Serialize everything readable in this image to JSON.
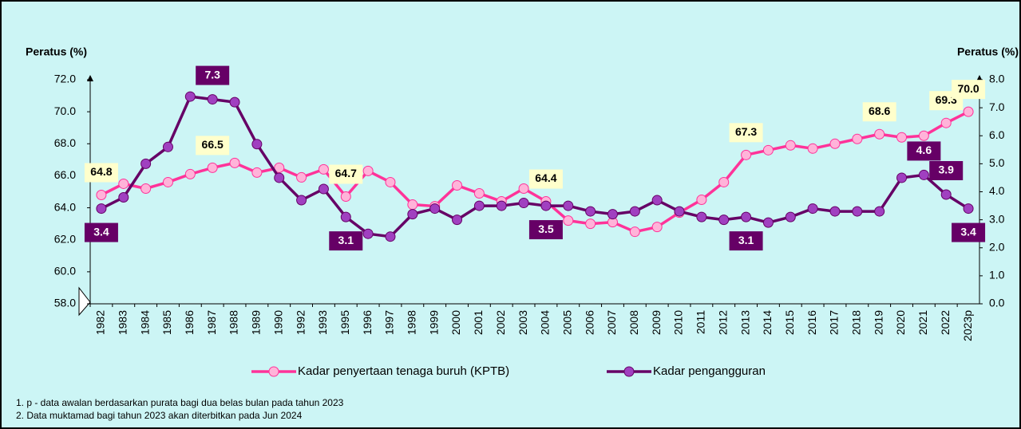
{
  "chart_data": {
    "type": "line",
    "y_label": "Peratus (%)",
    "y2_label": "Peratus (%)",
    "categories": [
      "1982",
      "1983",
      "1984",
      "1985",
      "1986",
      "1987",
      "1988",
      "1989",
      "1990",
      "1992",
      "1993",
      "1995",
      "1996",
      "1997",
      "1998",
      "1999",
      "2000",
      "2001",
      "2002",
      "2003",
      "2004",
      "2005",
      "2006",
      "2007",
      "2008",
      "2009",
      "2010",
      "2011",
      "2012",
      "2013",
      "2014",
      "2015",
      "2016",
      "2017",
      "2018",
      "2019",
      "2020",
      "2021",
      "2022",
      "2023p"
    ],
    "ylim": [
      58,
      72
    ],
    "yticks": [
      {
        "value": 58,
        "label": "58.0"
      },
      {
        "value": 60,
        "label": "60.0"
      },
      {
        "value": 62,
        "label": "62.0"
      },
      {
        "value": 64,
        "label": "64.0"
      },
      {
        "value": 66,
        "label": "66.0"
      },
      {
        "value": 68,
        "label": "68.0"
      },
      {
        "value": 70,
        "label": "70.0"
      },
      {
        "value": 72,
        "label": "72.0"
      }
    ],
    "y2lim": [
      0,
      8
    ],
    "y2ticks": [
      {
        "value": 0,
        "label": "0.0"
      },
      {
        "value": 1,
        "label": "1.0"
      },
      {
        "value": 2,
        "label": "2.0"
      },
      {
        "value": 3,
        "label": "3.0"
      },
      {
        "value": 4,
        "label": "4.0"
      },
      {
        "value": 5,
        "label": "5.0"
      },
      {
        "value": 6,
        "label": "6.0"
      },
      {
        "value": 7,
        "label": "7.0"
      },
      {
        "value": 8,
        "label": "8.0"
      }
    ],
    "series": [
      {
        "name": "Kadar penyertaan tenaga buruh (KPTB)",
        "color": "#ff3399",
        "marker_color": "#ffb3d9",
        "values": [
          64.8,
          65.5,
          65.2,
          65.6,
          66.1,
          66.5,
          66.8,
          66.2,
          66.5,
          65.9,
          66.4,
          64.7,
          66.3,
          65.6,
          64.2,
          64.1,
          65.4,
          64.9,
          64.4,
          65.2,
          64.4,
          63.2,
          63.0,
          63.1,
          62.5,
          62.8,
          63.7,
          64.5,
          65.6,
          67.3,
          67.6,
          67.9,
          67.7,
          68.0,
          68.3,
          68.6,
          68.4,
          68.5,
          69.3,
          70.0
        ],
        "value_labels": [
          "64.8",
          null,
          null,
          null,
          null,
          "66.5",
          null,
          null,
          null,
          null,
          null,
          "64.7",
          null,
          null,
          null,
          null,
          null,
          null,
          null,
          null,
          "64.4",
          null,
          null,
          null,
          null,
          null,
          null,
          null,
          null,
          "67.3",
          null,
          null,
          null,
          null,
          null,
          "68.6",
          null,
          null,
          "69.3",
          "70.0"
        ]
      },
      {
        "name": "Kadar pengangguran",
        "color": "#660066",
        "marker_color": "#a040c0",
        "axis": "y2",
        "values": [
          3.4,
          3.8,
          5.0,
          5.6,
          7.4,
          7.3,
          7.2,
          5.7,
          4.5,
          3.7,
          4.1,
          3.1,
          2.5,
          2.4,
          3.2,
          3.4,
          3.0,
          3.5,
          3.5,
          3.6,
          3.5,
          3.5,
          3.3,
          3.2,
          3.3,
          3.7,
          3.3,
          3.1,
          3.0,
          3.1,
          2.9,
          3.1,
          3.4,
          3.3,
          3.3,
          3.3,
          4.5,
          4.6,
          3.9,
          3.4
        ],
        "value_labels": [
          "3.4",
          null,
          null,
          null,
          null,
          "7.3",
          null,
          null,
          null,
          null,
          null,
          "3.1",
          null,
          null,
          null,
          null,
          null,
          null,
          null,
          null,
          "3.5",
          null,
          null,
          null,
          null,
          null,
          null,
          null,
          null,
          "3.1",
          null,
          null,
          null,
          null,
          null,
          null,
          null,
          "4.6",
          "3.9",
          "3.4"
        ]
      }
    ],
    "notes": [
      "1. p - data awalan berdasarkan purata bagi dua belas bulan pada tahun 2023",
      "2. Data muktamad bagi tahun 2023 akan diterbitkan pada Jun 2024"
    ]
  }
}
